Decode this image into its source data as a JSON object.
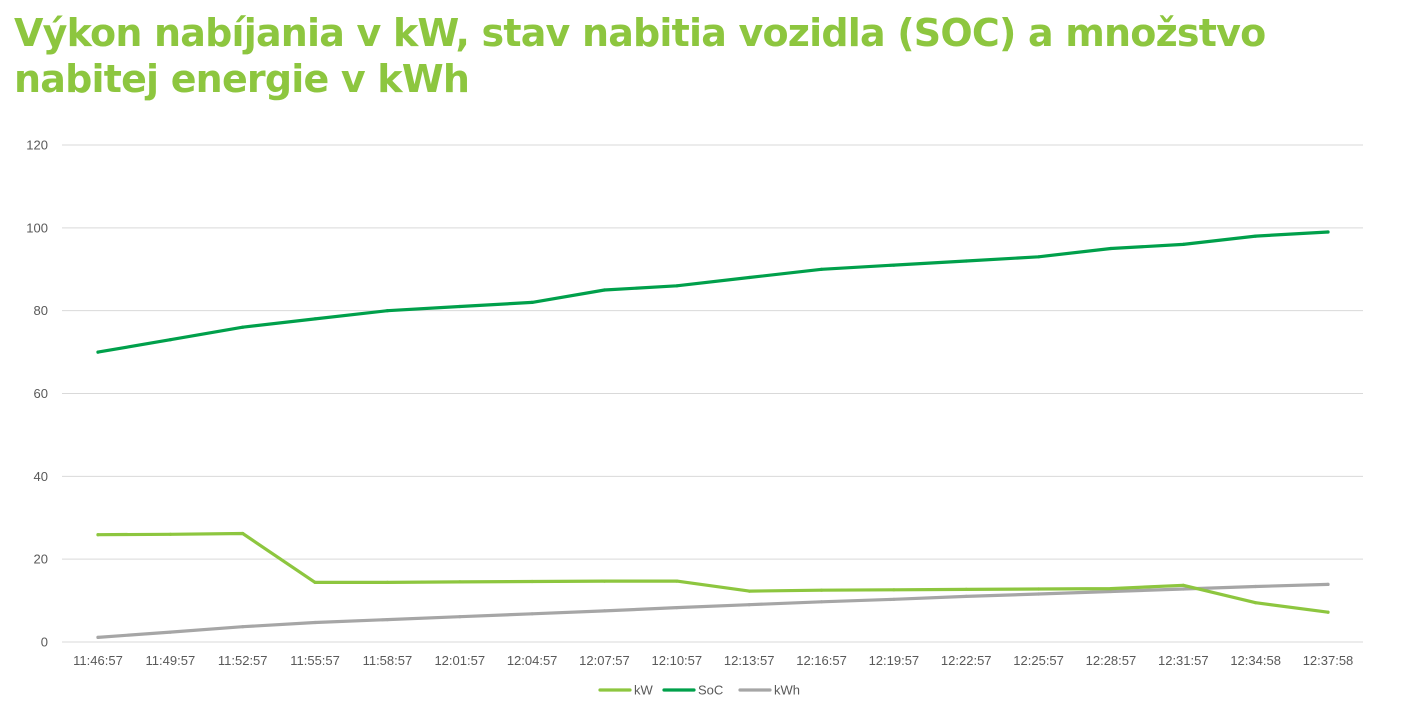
{
  "colors": {
    "title": "#8dc63f",
    "grid": "#d9d9d9",
    "tick_text": "#595959"
  },
  "chart_data": {
    "type": "line",
    "title": "Výkon nabíjania v kW, stav nabitia vozidla (SOC) a množstvo nabitej energie v kWh",
    "xlabel": "",
    "ylabel": "",
    "ylim": [
      0,
      120
    ],
    "yticks": [
      "0",
      "20",
      "40",
      "60",
      "80",
      "100",
      "120"
    ],
    "grid": true,
    "legend_position": "bottom",
    "categories": [
      "11:46:57",
      "11:49:57",
      "11:52:57",
      "11:55:57",
      "11:58:57",
      "12:01:57",
      "12:04:57",
      "12:07:57",
      "12:10:57",
      "12:13:57",
      "12:16:57",
      "12:19:57",
      "12:22:57",
      "12:25:57",
      "12:28:57",
      "12:31:57",
      "12:34:58",
      "12:37:58"
    ],
    "series": [
      {
        "name": "kW",
        "color": "#8dc63f",
        "values": [
          25.9,
          26.0,
          26.2,
          14.4,
          14.4,
          14.5,
          14.6,
          14.7,
          14.7,
          12.3,
          12.5,
          12.6,
          12.7,
          12.8,
          12.9,
          13.7,
          9.5,
          7.2
        ]
      },
      {
        "name": "SoC",
        "color": "#00a04b",
        "values": [
          70,
          73,
          76,
          78,
          80,
          81,
          82,
          85,
          86,
          88,
          90,
          91,
          92,
          93,
          95,
          96,
          98,
          99
        ]
      },
      {
        "name": "kWh",
        "color": "#a6a6a6",
        "values": [
          1.1,
          2.4,
          3.7,
          4.7,
          5.4,
          6.1,
          6.8,
          7.5,
          8.3,
          9.0,
          9.7,
          10.3,
          11.0,
          11.6,
          12.2,
          12.8,
          13.4,
          13.9
        ]
      }
    ]
  }
}
